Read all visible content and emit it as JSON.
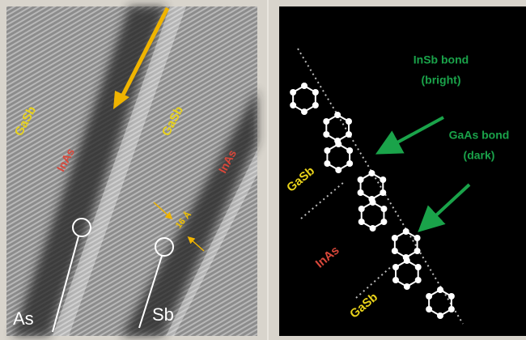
{
  "left_panel": {
    "labels": [
      "GaSb",
      "InAs",
      "GaSb",
      "InAs"
    ],
    "spacing": "16 Å",
    "atoms": [
      "As",
      "Sb"
    ]
  },
  "right_panel": {
    "bonds": [
      {
        "name": "InSb bond",
        "note": "(bright)"
      },
      {
        "name": "GaAs bond",
        "note": "(dark)"
      }
    ],
    "layers": [
      "GaSb",
      "InAs",
      "GaSb"
    ]
  }
}
